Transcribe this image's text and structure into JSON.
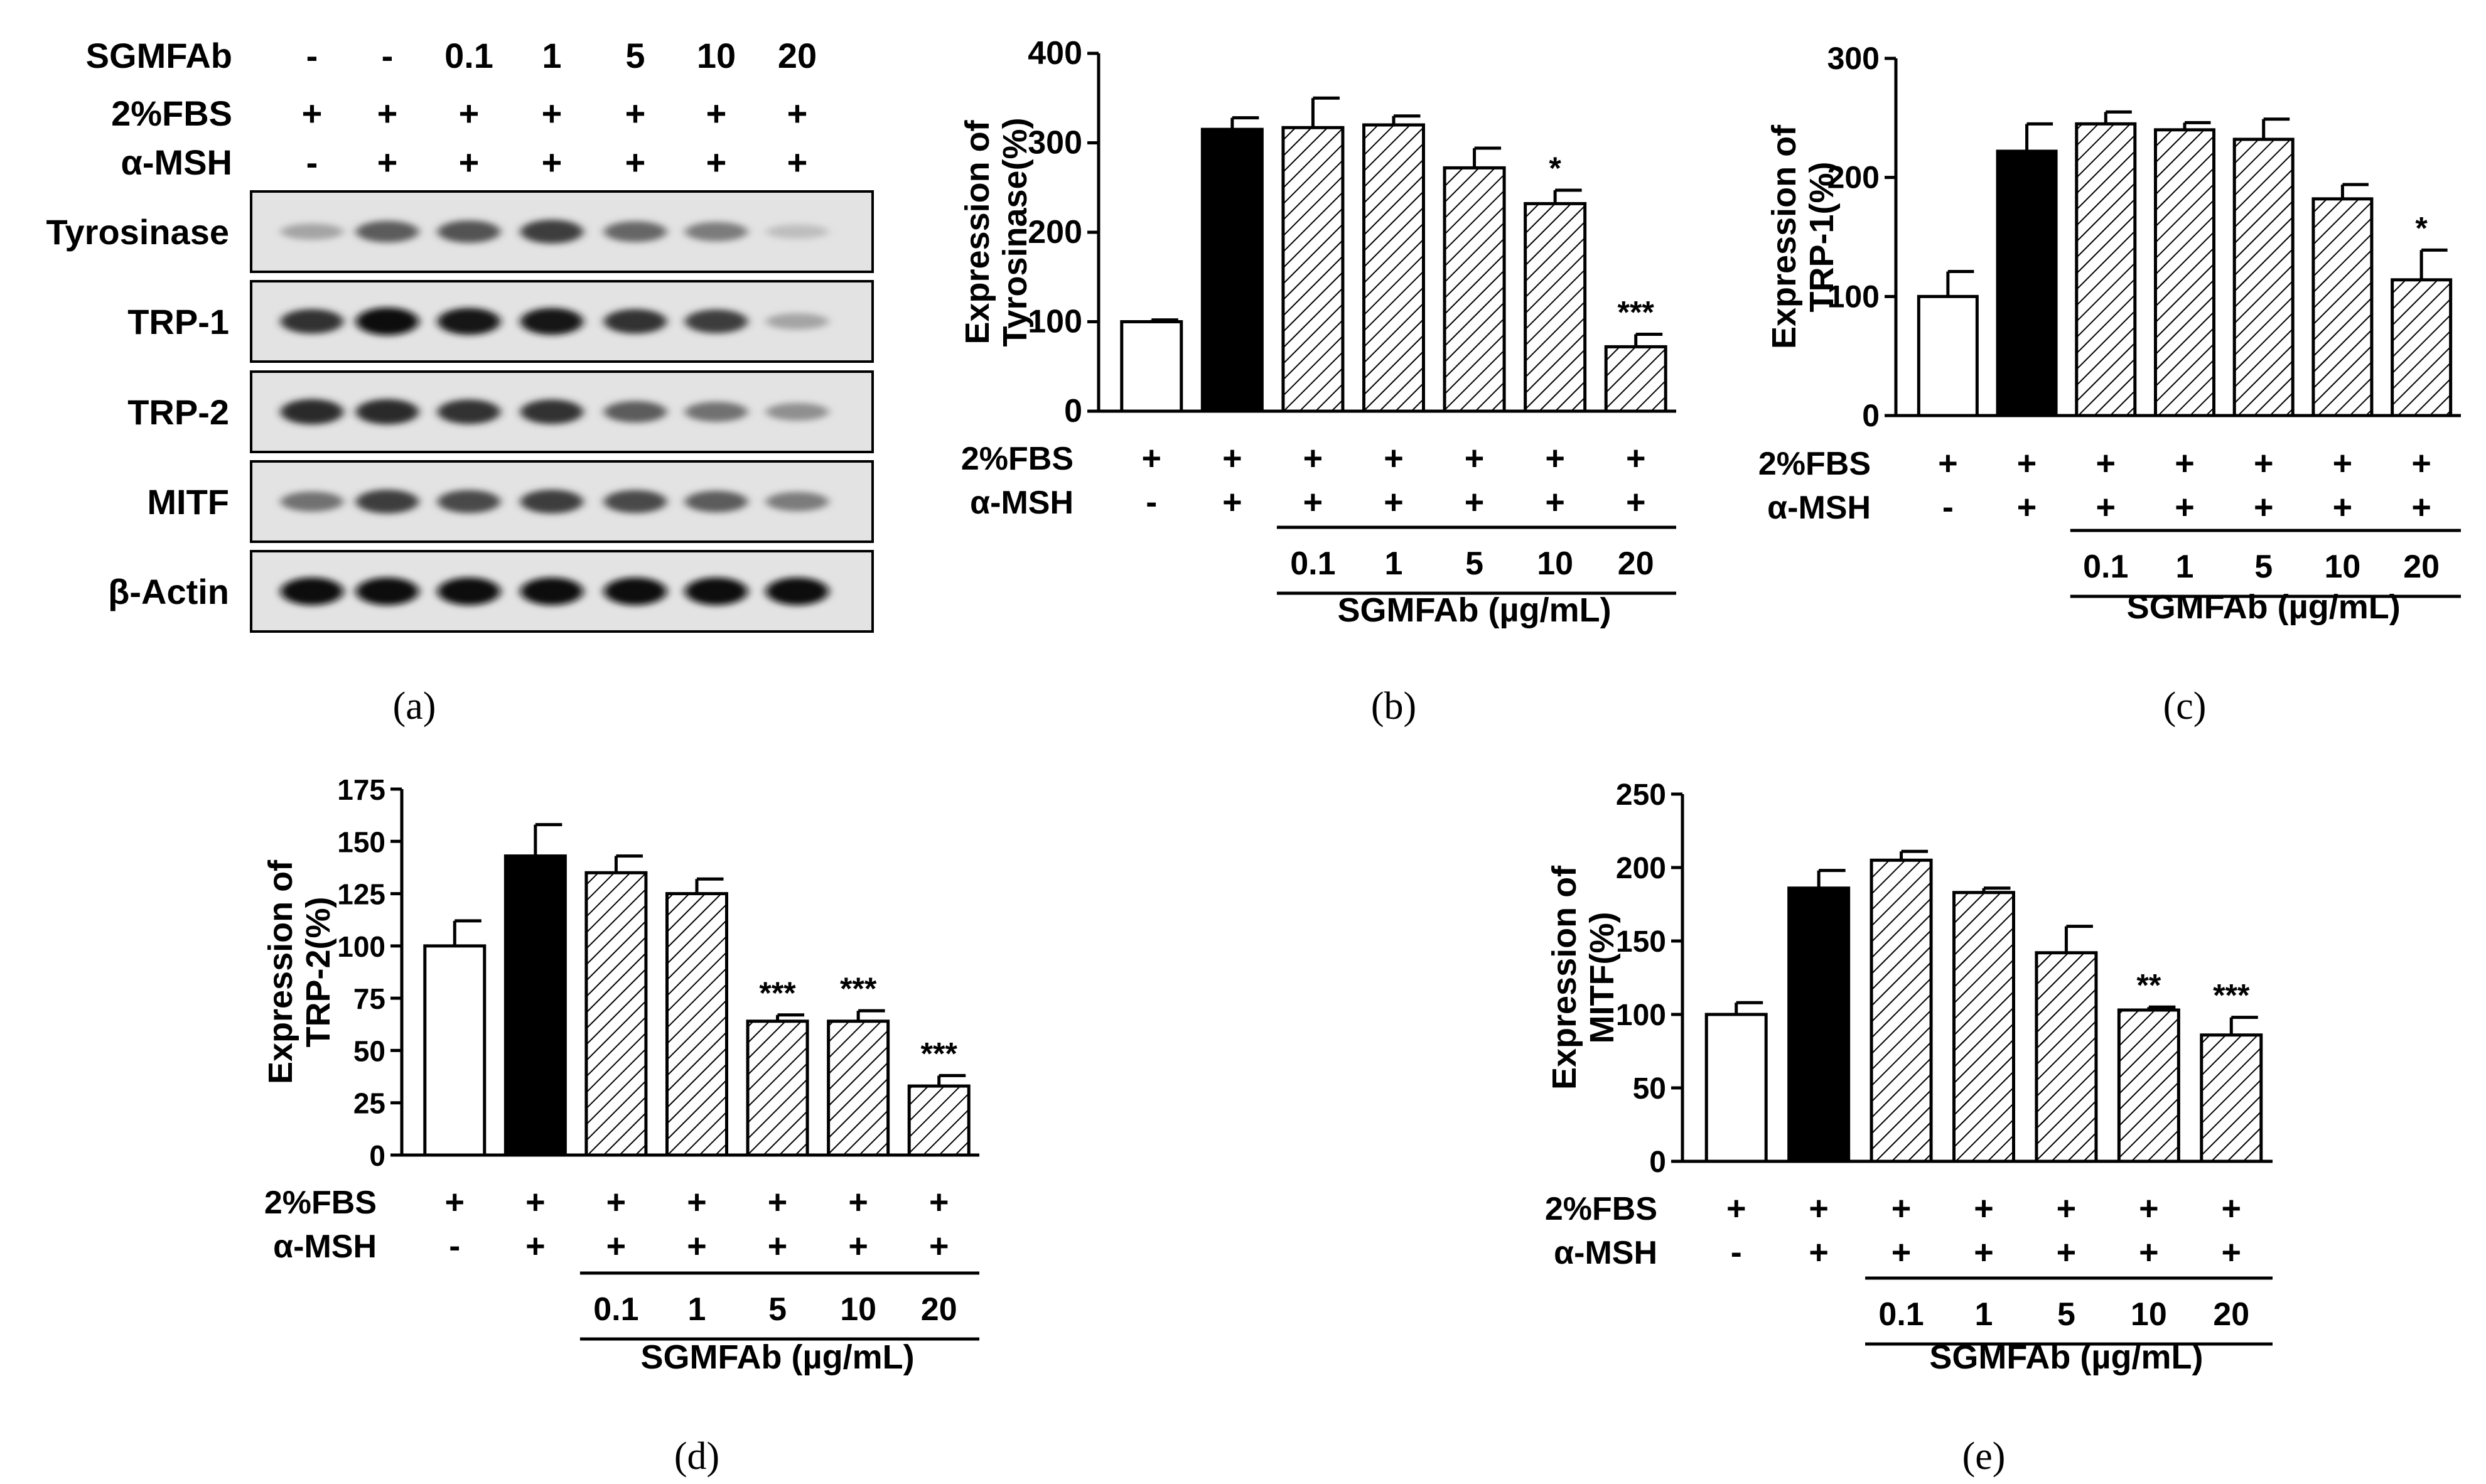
{
  "blot": {
    "panel": "(a)",
    "header_rows": [
      {
        "label": "SGMFAb",
        "values": [
          "-",
          "-",
          "0.1",
          "1",
          "5",
          "10",
          "20"
        ]
      },
      {
        "label": "2%FBS",
        "values": [
          "+",
          "+",
          "+",
          "+",
          "+",
          "+",
          "+"
        ]
      },
      {
        "label": "α-MSH",
        "values": [
          "-",
          "+",
          "+",
          "+",
          "+",
          "+",
          "+"
        ]
      }
    ],
    "rows": [
      {
        "label": "Tyrosinase",
        "bands": [
          0.25,
          0.6,
          0.65,
          0.75,
          0.55,
          0.45,
          0.12
        ]
      },
      {
        "label": "TRP-1",
        "bands": [
          0.8,
          1.0,
          0.95,
          0.95,
          0.8,
          0.75,
          0.25
        ]
      },
      {
        "label": "TRP-2",
        "bands": [
          0.85,
          0.85,
          0.8,
          0.8,
          0.6,
          0.5,
          0.35
        ]
      },
      {
        "label": "MITF",
        "bands": [
          0.5,
          0.75,
          0.7,
          0.75,
          0.7,
          0.6,
          0.45
        ]
      },
      {
        "label": "β-Actin",
        "bands": [
          1.0,
          1.0,
          1.0,
          1.0,
          1.0,
          1.0,
          1.0
        ]
      }
    ]
  },
  "chart_data": [
    {
      "panel": "(b)",
      "type": "bar",
      "ylabel_lines": [
        "Expression of",
        "Tyrosinase(%)"
      ],
      "ylim": [
        0,
        400
      ],
      "yticks": [
        0,
        100,
        200,
        300,
        400
      ],
      "values": [
        100,
        315,
        317,
        320,
        272,
        232,
        72
      ],
      "errors": [
        2,
        13,
        33,
        10,
        22,
        15,
        14
      ],
      "significance": [
        "",
        "",
        "",
        "",
        "",
        "*",
        "***"
      ],
      "fills": [
        "white",
        "black",
        "hatch",
        "hatch",
        "hatch",
        "hatch",
        "hatch"
      ],
      "row_fbs": {
        "label": "2%FBS",
        "values": [
          "+",
          "+",
          "+",
          "+",
          "+",
          "+",
          "+"
        ]
      },
      "row_msh": {
        "label": "α-MSH",
        "values": [
          "-",
          "+",
          "+",
          "+",
          "+",
          "+",
          "+"
        ]
      },
      "doses": [
        "0.1",
        "1",
        "5",
        "10",
        "20"
      ],
      "xlabel": "SGMFAb (µg/mL)"
    },
    {
      "panel": "(c)",
      "type": "bar",
      "ylabel_lines": [
        "Expression of",
        "TRP-1(%)"
      ],
      "ylim": [
        0,
        300
      ],
      "yticks": [
        0,
        100,
        200,
        300
      ],
      "values": [
        100,
        222,
        245,
        240,
        232,
        182,
        114
      ],
      "errors": [
        21,
        23,
        10,
        6,
        17,
        12,
        25
      ],
      "significance": [
        "",
        "",
        "",
        "",
        "",
        "",
        "*"
      ],
      "fills": [
        "white",
        "black",
        "hatch",
        "hatch",
        "hatch",
        "hatch",
        "hatch"
      ],
      "row_fbs": {
        "label": "2%FBS",
        "values": [
          "+",
          "+",
          "+",
          "+",
          "+",
          "+",
          "+"
        ]
      },
      "row_msh": {
        "label": "α-MSH",
        "values": [
          "-",
          "+",
          "+",
          "+",
          "+",
          "+",
          "+"
        ]
      },
      "doses": [
        "0.1",
        "1",
        "5",
        "10",
        "20"
      ],
      "xlabel": "SGMFAb (µg/mL)"
    },
    {
      "panel": "(d)",
      "type": "bar",
      "ylabel_lines": [
        "Expression of",
        "TRP-2(%)"
      ],
      "ylim": [
        0,
        175
      ],
      "yticks": [
        0,
        25,
        50,
        75,
        100,
        125,
        150,
        175
      ],
      "values": [
        100,
        143,
        135,
        125,
        64,
        64,
        33
      ],
      "errors": [
        12,
        15,
        8,
        7,
        3,
        5,
        5
      ],
      "significance": [
        "",
        "",
        "",
        "",
        "***",
        "***",
        "***"
      ],
      "fills": [
        "white",
        "black",
        "hatch",
        "hatch",
        "hatch",
        "hatch",
        "hatch"
      ],
      "row_fbs": {
        "label": "2%FBS",
        "values": [
          "+",
          "+",
          "+",
          "+",
          "+",
          "+",
          "+"
        ]
      },
      "row_msh": {
        "label": "α-MSH",
        "values": [
          "-",
          "+",
          "+",
          "+",
          "+",
          "+",
          "+"
        ]
      },
      "doses": [
        "0.1",
        "1",
        "5",
        "10",
        "20"
      ],
      "xlabel": "SGMFAb (µg/mL)"
    },
    {
      "panel": "(e)",
      "type": "bar",
      "ylabel_lines": [
        "Expression of",
        "MITF(%)"
      ],
      "ylim": [
        0,
        250
      ],
      "yticks": [
        0,
        50,
        100,
        150,
        200,
        250
      ],
      "values": [
        100,
        186,
        205,
        183,
        142,
        103,
        86
      ],
      "errors": [
        8,
        12,
        6,
        3,
        18,
        2,
        12
      ],
      "significance": [
        "",
        "",
        "",
        "",
        "",
        "**",
        "***"
      ],
      "fills": [
        "white",
        "black",
        "hatch",
        "hatch",
        "hatch",
        "hatch",
        "hatch"
      ],
      "row_fbs": {
        "label": "2%FBS",
        "values": [
          "+",
          "+",
          "+",
          "+",
          "+",
          "+",
          "+"
        ]
      },
      "row_msh": {
        "label": "α-MSH",
        "values": [
          "-",
          "+",
          "+",
          "+",
          "+",
          "+",
          "+"
        ]
      },
      "doses": [
        "0.1",
        "1",
        "5",
        "10",
        "20"
      ],
      "xlabel": "SGMFAb (µg/mL)"
    }
  ]
}
